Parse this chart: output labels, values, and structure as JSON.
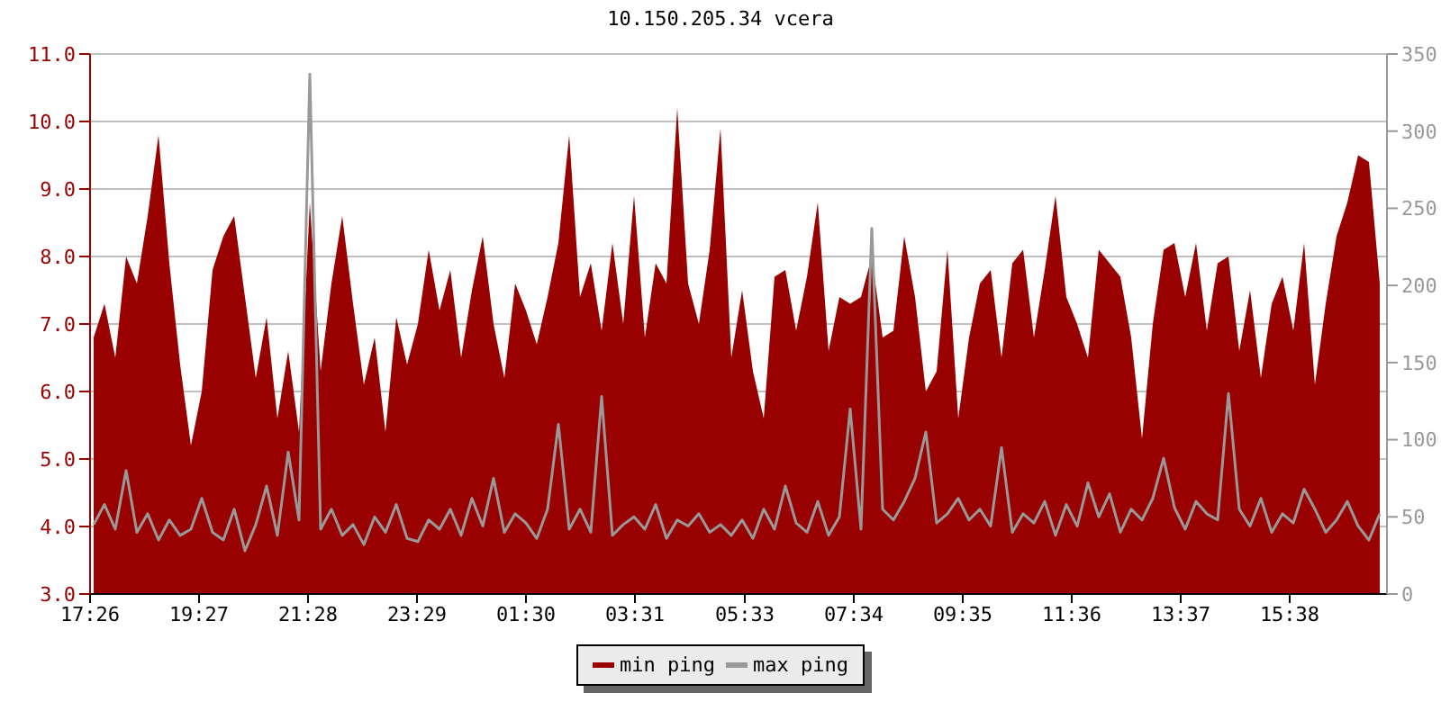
{
  "chart_data": {
    "type": "area",
    "title": "10.150.205.34 vcera",
    "x": [
      "--01-01T17:30",
      "--01-01T17:42",
      "--01-01T17:54",
      "--01-01T18:06",
      "--01-01T18:18",
      "--01-01T18:30",
      "--01-01T18:42",
      "--01-01T18:54",
      "--01-01T19:06",
      "--01-01T19:18",
      "--01-01T19:30",
      "--01-01T19:42",
      "--01-01T19:54",
      "--01-01T20:06",
      "--01-01T20:18",
      "--01-01T20:30",
      "--01-01T20:42",
      "--01-01T20:54",
      "--01-01T21:06",
      "--01-01T21:18",
      "--01-01T21:30",
      "--01-01T21:42",
      "--01-01T21:54",
      "--01-01T22:06",
      "--01-01T22:18",
      "--01-01T22:30",
      "--01-01T22:42",
      "--01-01T22:54",
      "--01-01T23:06",
      "--01-01T23:18",
      "--01-01T23:30",
      "--01-01T23:42",
      "--01-01T23:54",
      "--01-02T00:06",
      "--01-02T00:18",
      "--01-02T00:30",
      "--01-02T00:42",
      "--01-02T00:54",
      "--01-02T01:06",
      "--01-02T01:18",
      "--01-02T01:30",
      "--01-02T01:42",
      "--01-02T01:54",
      "--01-02T02:06",
      "--01-02T02:18",
      "--01-02T02:30",
      "--01-02T02:42",
      "--01-02T02:54",
      "--01-02T03:06",
      "--01-02T03:18",
      "--01-02T03:30",
      "--01-02T03:42",
      "--01-02T03:54",
      "--01-02T04:06",
      "--01-02T04:18",
      "--01-02T04:30",
      "--01-02T04:42",
      "--01-02T04:54",
      "--01-02T05:06",
      "--01-02T05:18",
      "--01-02T05:30",
      "--01-02T05:42",
      "--01-02T05:54",
      "--01-02T06:06",
      "--01-02T06:18",
      "--01-02T06:30",
      "--01-02T06:42",
      "--01-02T06:54",
      "--01-02T07:06",
      "--01-02T07:18",
      "--01-02T07:30",
      "--01-02T07:42",
      "--01-02T07:54",
      "--01-02T08:06",
      "--01-02T08:18",
      "--01-02T08:30",
      "--01-02T08:42",
      "--01-02T08:54",
      "--01-02T09:06",
      "--01-02T09:18",
      "--01-02T09:30",
      "--01-02T09:42",
      "--01-02T09:54",
      "--01-02T10:06",
      "--01-02T10:18",
      "--01-02T10:30",
      "--01-02T10:42",
      "--01-02T10:54",
      "--01-02T11:06",
      "--01-02T11:18",
      "--01-02T11:30",
      "--01-02T11:42",
      "--01-02T11:54",
      "--01-02T12:06",
      "--01-02T12:18",
      "--01-02T12:30",
      "--01-02T12:42",
      "--01-02T12:54",
      "--01-02T13:06",
      "--01-02T13:18",
      "--01-02T13:30",
      "--01-02T13:42",
      "--01-02T13:54",
      "--01-02T14:06",
      "--01-02T14:18",
      "--01-02T14:30",
      "--01-02T14:42",
      "--01-02T14:54",
      "--01-02T15:06",
      "--01-02T15:18",
      "--01-02T15:30",
      "--01-02T15:42",
      "--01-02T15:54",
      "--01-02T16:06",
      "--01-02T16:18",
      "--01-02T16:30",
      "--01-02T16:42",
      "--01-02T16:54",
      "--01-02T17:06",
      "--01-02T17:18"
    ],
    "xlim": [
      "--01-01T17:26",
      "--01-02T17:26"
    ],
    "xticks": [
      {
        "value": "--01-01T17:26",
        "label": "17:26"
      },
      {
        "value": "--01-01T19:27",
        "label": "19:27"
      },
      {
        "value": "--01-01T21:28",
        "label": "21:28"
      },
      {
        "value": "--01-01T23:29",
        "label": "23:29"
      },
      {
        "value": "--01-02T01:30",
        "label": "01:30"
      },
      {
        "value": "--01-02T03:31",
        "label": "03:31"
      },
      {
        "value": "--01-02T05:33",
        "label": "05:33"
      },
      {
        "value": "--01-02T07:34",
        "label": "07:34"
      },
      {
        "value": "--01-02T09:35",
        "label": "09:35"
      },
      {
        "value": "--01-02T11:36",
        "label": "11:36"
      },
      {
        "value": "--01-02T13:37",
        "label": "13:37"
      },
      {
        "value": "--01-02T15:38",
        "label": "15:38"
      }
    ],
    "ylim": [
      3,
      11
    ],
    "yticks": [
      {
        "value": 3,
        "label": "3.0"
      },
      {
        "value": 4,
        "label": "4.0"
      },
      {
        "value": 5,
        "label": "5.0"
      },
      {
        "value": 6,
        "label": "6.0"
      },
      {
        "value": 7,
        "label": "7.0"
      },
      {
        "value": 8,
        "label": "8.0"
      },
      {
        "value": 9,
        "label": "9.0"
      },
      {
        "value": 10,
        "label": "10.0"
      },
      {
        "value": 11,
        "label": "11.0"
      }
    ],
    "y2lim": [
      0,
      350
    ],
    "y2ticks": [
      0,
      50,
      100,
      150,
      200,
      250,
      300,
      350
    ],
    "grid": "y",
    "legend": "bottom",
    "series": [
      {
        "name": "min ping",
        "color": "#990000",
        "values": [
          6.8,
          7.3,
          6.5,
          8.0,
          7.6,
          8.6,
          9.8,
          7.9,
          6.4,
          5.2,
          6.0,
          7.8,
          8.3,
          8.6,
          7.4,
          6.2,
          7.1,
          5.6,
          6.6,
          5.4,
          8.8,
          6.3,
          7.6,
          8.6,
          7.3,
          6.1,
          6.8,
          5.4,
          7.1,
          6.4,
          7.0,
          8.1,
          7.2,
          7.8,
          6.5,
          7.5,
          8.3,
          7.0,
          6.2,
          7.6,
          7.2,
          6.7,
          7.4,
          8.2,
          9.8,
          7.4,
          7.9,
          6.9,
          8.2,
          7.0,
          8.9,
          6.8,
          7.9,
          7.6,
          10.2,
          7.6,
          7.0,
          8.1,
          9.9,
          6.5,
          7.5,
          6.3,
          5.6,
          7.7,
          7.8,
          6.9,
          7.7,
          8.8,
          6.6,
          7.4,
          7.3,
          7.4,
          8.0,
          6.8,
          6.9,
          8.3,
          7.4,
          6.0,
          6.3,
          8.1,
          5.6,
          6.8,
          7.6,
          7.8,
          6.5,
          7.9,
          8.1,
          6.8,
          7.8,
          8.9,
          7.4,
          7.0,
          6.5,
          8.1,
          7.9,
          7.7,
          6.8,
          5.3,
          7.0,
          8.1,
          8.2,
          7.4,
          8.2,
          6.9,
          7.9,
          8.0,
          6.6,
          7.5,
          6.2,
          7.3,
          7.7,
          6.9,
          8.2,
          6.1,
          7.3,
          8.3,
          8.8,
          9.5,
          9.4,
          7.6
        ]
      },
      {
        "name": "max ping",
        "type": "line",
        "axis": "y2",
        "color": "#999999",
        "values": [
          45,
          58,
          42,
          80,
          40,
          52,
          35,
          48,
          38,
          42,
          62,
          40,
          35,
          55,
          28,
          45,
          70,
          38,
          92,
          48,
          337,
          42,
          55,
          38,
          45,
          32,
          50,
          40,
          58,
          36,
          34,
          48,
          42,
          55,
          38,
          62,
          44,
          75,
          40,
          52,
          46,
          36,
          55,
          110,
          42,
          55,
          40,
          128,
          38,
          45,
          50,
          42,
          58,
          36,
          48,
          44,
          52,
          40,
          45,
          38,
          48,
          36,
          55,
          42,
          70,
          46,
          40,
          60,
          38,
          50,
          120,
          42,
          237,
          55,
          48,
          60,
          75,
          105,
          46,
          52,
          62,
          48,
          55,
          44,
          95,
          40,
          52,
          46,
          60,
          38,
          58,
          44,
          72,
          50,
          65,
          40,
          55,
          48,
          62,
          88,
          56,
          42,
          60,
          52,
          48,
          130,
          55,
          44,
          62,
          40,
          52,
          46,
          68,
          55,
          40,
          48,
          60,
          44,
          35,
          52
        ]
      }
    ]
  }
}
